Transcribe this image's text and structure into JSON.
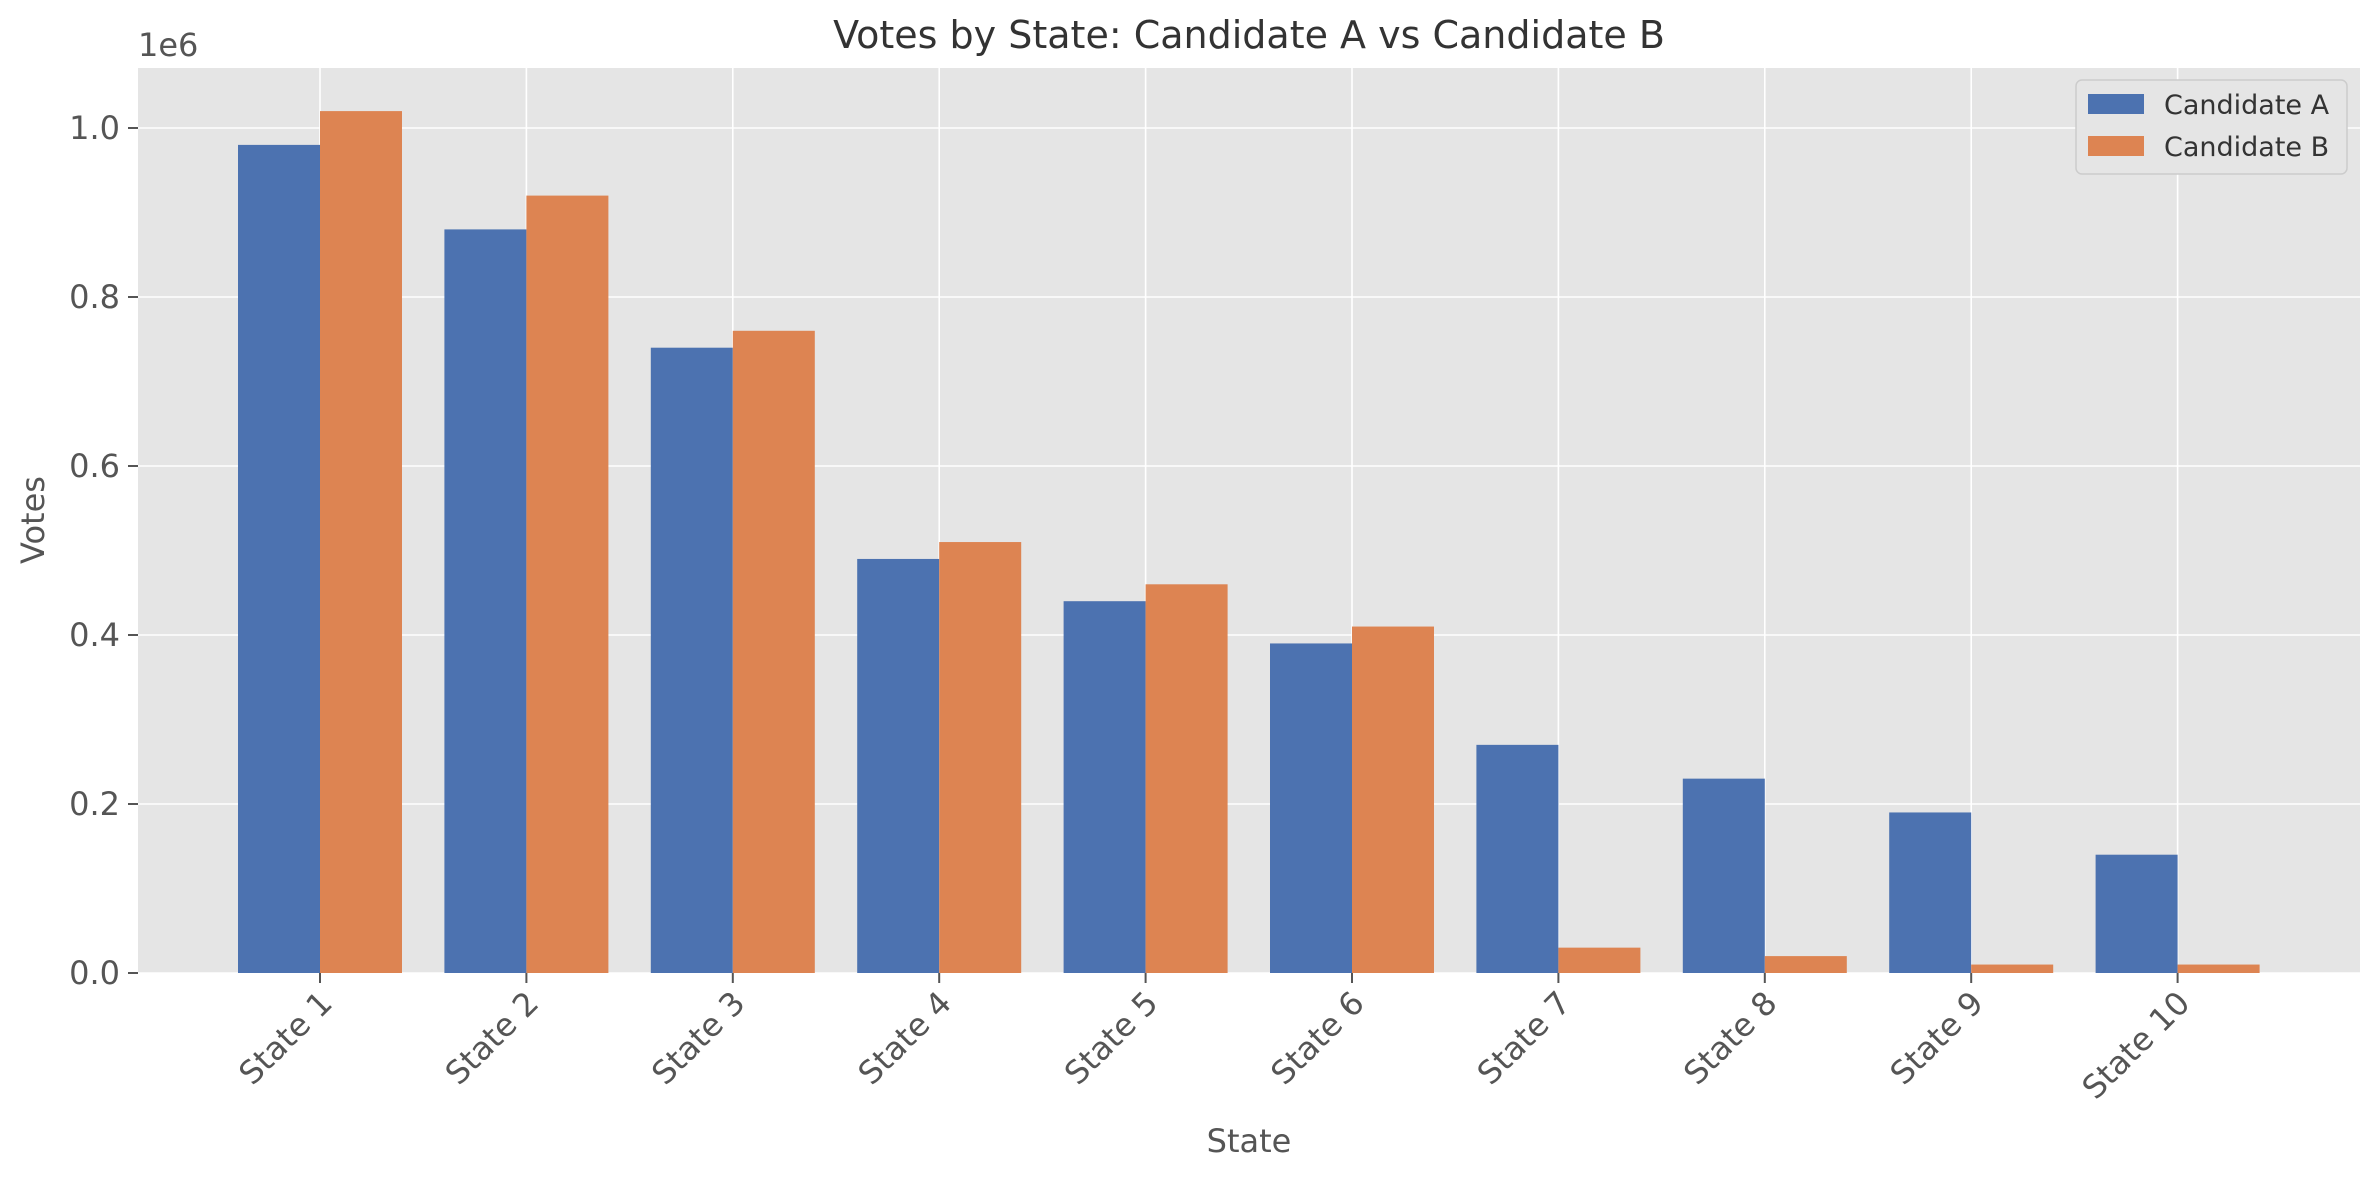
{
  "chart_data": {
    "type": "bar",
    "title": "Votes by State: Candidate A vs Candidate B",
    "xlabel": "State",
    "ylabel": "Votes",
    "y_offset_label": "1e6",
    "categories": [
      "State 1",
      "State 2",
      "State 3",
      "State 4",
      "State 5",
      "State 6",
      "State 7",
      "State 8",
      "State 9",
      "State 10"
    ],
    "series": [
      {
        "name": "Candidate A",
        "color": "#4c72b0",
        "values": [
          980000,
          880000,
          740000,
          490000,
          440000,
          390000,
          270000,
          230000,
          190000,
          140000
        ]
      },
      {
        "name": "Candidate B",
        "color": "#dd8452",
        "values": [
          1020000,
          920000,
          760000,
          510000,
          460000,
          410000,
          30000,
          20000,
          10000,
          10000
        ]
      }
    ],
    "yticks": [
      0,
      200000,
      400000,
      600000,
      800000,
      1000000
    ],
    "ytick_labels": [
      "0.0",
      "0.2",
      "0.4",
      "0.6",
      "0.8",
      "1.0"
    ],
    "ylim": [
      0,
      1071000
    ],
    "grid": true,
    "legend_position": "top-right"
  }
}
